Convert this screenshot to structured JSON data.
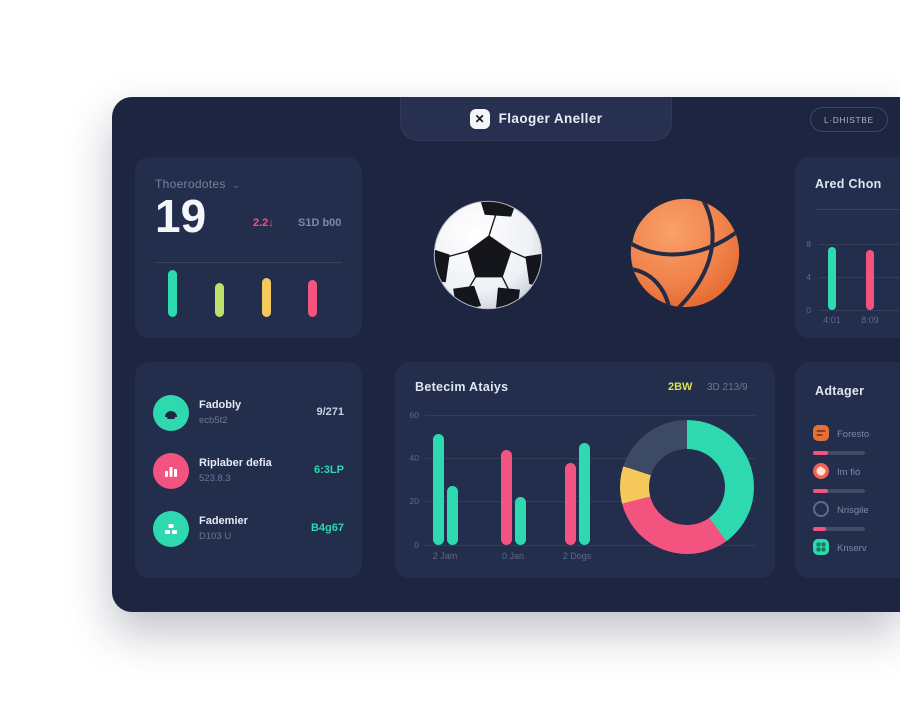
{
  "app": {
    "title": "Flaoger Aneller",
    "logo_glyph": "✕",
    "header_button_label": "L·DHISTBE"
  },
  "colors": {
    "panel": "#1d2540",
    "card": "#232d4c",
    "teal": "#2ed9b0",
    "lime": "#bfe06a",
    "yellow": "#f6c95d",
    "pink": "#f2537f",
    "slate": "#3c4a66",
    "orange": "#e2703a",
    "coral": "#ee6352",
    "badge_yellow": "#d6e14b"
  },
  "top_left_card": {
    "title": "Thoerodotes",
    "big_number": "19",
    "stat_pink": "2.2↓",
    "stat_muted": "S1D b00"
  },
  "list_card": {
    "items": [
      {
        "title": "Fadobly",
        "subtitle": "ecb5t2",
        "value": "9/271",
        "value_color": "#c7cfe0",
        "icon": "dome-icon",
        "icon_bg": "#2ed9b0"
      },
      {
        "title": "Riplaber defia",
        "subtitle": "523.8.3",
        "value": "6:3LP",
        "value_color": "#2ed9b0",
        "icon": "chart-icon",
        "icon_bg": "#f2537f"
      },
      {
        "title": "Fademier",
        "subtitle": "D103 U",
        "value": "B4g67",
        "value_color": "#2ed9b0",
        "icon": "boxes-icon",
        "icon_bg": "#2ed9b0"
      }
    ]
  },
  "center_card": {
    "title": "Betecim Ataiys",
    "badge": "2BW",
    "subtext": "3D 213/9"
  },
  "right_top_card": {
    "title": "Ared Chon"
  },
  "right_bottom_card": {
    "title": "Adtager",
    "items": [
      {
        "label": "Foresto",
        "icon": "list-icon",
        "icon_bg": "#e2703a",
        "progress": 28
      },
      {
        "label": "Im fió",
        "icon": "chat-icon",
        "icon_bg": "#ee6352",
        "progress": 28
      },
      {
        "label": "Nrisgile",
        "icon": "circle-outline-icon",
        "icon_bg": "transparent",
        "progress": 25
      },
      {
        "label": "Knserv",
        "icon": "grid-icon",
        "icon_bg": "#2ed9b0",
        "progress": null
      }
    ]
  },
  "chart_data": [
    {
      "id": "weekly-mini-bars",
      "type": "bar",
      "values": [
        47,
        34,
        39,
        37
      ],
      "colors": [
        "#2ed9b0",
        "#bfe06a",
        "#f6c95d",
        "#f2537f"
      ]
    },
    {
      "id": "ared-chon-bars",
      "type": "bar",
      "categories": [
        "4:01",
        "8:09"
      ],
      "values": [
        63,
        60
      ],
      "colors": [
        "#2ed9b0",
        "#f2537f"
      ],
      "y_ticks": [
        "8",
        "4",
        "0"
      ]
    },
    {
      "id": "betecim-grouped-bars",
      "type": "bar",
      "ylim": [
        0,
        60
      ],
      "y_ticks": [
        "60",
        "40",
        "20",
        "0"
      ],
      "grid": true,
      "groups": [
        {
          "label": "2 Jam",
          "bars": [
            {
              "value": 51,
              "color": "#2ed9b0"
            },
            {
              "value": 27,
              "color": "#2ed9b0"
            }
          ]
        },
        {
          "label": "0 Jan",
          "bars": [
            {
              "value": 44,
              "color": "#f2537f"
            },
            {
              "value": 22,
              "color": "#2ed9b0"
            }
          ]
        },
        {
          "label": "2 Dogs",
          "bars": [
            {
              "value": 38,
              "color": "#f2537f"
            },
            {
              "value": 47,
              "color": "#2ed9b0"
            }
          ]
        }
      ]
    },
    {
      "id": "donut",
      "type": "pie",
      "segments": [
        {
          "name": "teal",
          "value": 40,
          "color": "#2ed9b0"
        },
        {
          "name": "pink",
          "value": 31,
          "color": "#f2537f"
        },
        {
          "name": "yellow",
          "value": 9,
          "color": "#f6c95d"
        },
        {
          "name": "slate",
          "value": 20,
          "color": "#3c4a66"
        }
      ]
    }
  ]
}
